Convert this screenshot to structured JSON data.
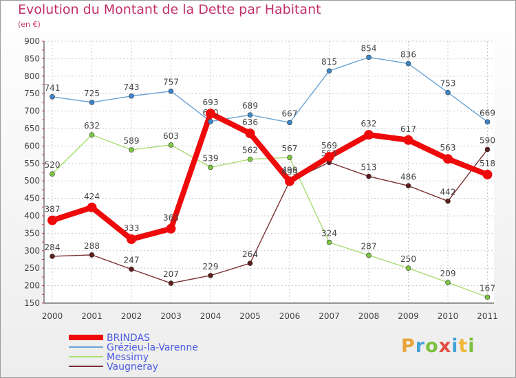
{
  "title": "Evolution du Montant de la Dette par Habitant",
  "unit_label": "(en €)",
  "logo": {
    "text": "Proxiti",
    "letter_colors": [
      "#e8a33a",
      "#43a3d8",
      "#7bbf3a",
      "#e14c3e",
      "#43a3d8",
      "#f0b73a",
      "#7bbf3a"
    ]
  },
  "chart_data": {
    "type": "line",
    "title": "Evolution du Montant de la Dette par Habitant",
    "ylabel": "(en €)",
    "xlabel": "",
    "ylim": [
      150,
      900
    ],
    "y_ticks": [
      150,
      200,
      250,
      300,
      350,
      400,
      450,
      500,
      550,
      600,
      650,
      700,
      750,
      800,
      850,
      900
    ],
    "grid": true,
    "legend_position": "bottom-left",
    "categories": [
      "2000",
      "2001",
      "2002",
      "2003",
      "2004",
      "2005",
      "2006",
      "2007",
      "2008",
      "2009",
      "2010",
      "2011"
    ],
    "series": [
      {
        "name": "Grézieu-la-Varenne",
        "color": "#6aa3d4",
        "marker_color": "#3b86c9",
        "values": [
          741,
          725,
          743,
          757,
          670,
          689,
          667,
          815,
          854,
          836,
          753,
          669
        ],
        "labels": [
          "741",
          "725",
          "743",
          "757",
          "670",
          "689",
          "667",
          "815",
          "854",
          "836",
          "753",
          "669"
        ]
      },
      {
        "name": "Messimy",
        "color": "#a8dc70",
        "marker_color": "#7dc843",
        "values": [
          520,
          632,
          589,
          603,
          539,
          562,
          567,
          324,
          287,
          250,
          209,
          167
        ],
        "labels": [
          "520",
          "632",
          "589",
          "603",
          "539",
          "562",
          "567",
          "324",
          "287",
          "250",
          "209",
          "167"
        ]
      },
      {
        "name": "Vaugneray",
        "color": "#7a3030",
        "marker_color": "#5e1e1e",
        "values": [
          284,
          288,
          247,
          207,
          229,
          264,
          499,
          553,
          513,
          486,
          442,
          590
        ],
        "labels": [
          "284",
          "288",
          "247",
          "207",
          "229",
          "264",
          "499",
          "553",
          "513",
          "486",
          "442",
          "590"
        ]
      },
      {
        "name": "BRINDAS",
        "color": "#ee0a0a",
        "marker_color": "#ee0a0a",
        "values": [
          387,
          424,
          333,
          363,
          693,
          636,
          499,
          569,
          632,
          617,
          563,
          518
        ],
        "labels": [
          "387",
          "424",
          "333",
          "363",
          "693",
          "636",
          "499",
          "569",
          "632",
          "617",
          "563",
          "518"
        ]
      }
    ],
    "legend": [
      {
        "name": "BRINDAS",
        "color": "#ee0a0a",
        "text_color": "#4a5ae0"
      },
      {
        "name": "Grézieu-la-Varenne",
        "color": "#6aa3d4",
        "text_color": "#4a5ae0"
      },
      {
        "name": "Messimy",
        "color": "#a8dc70",
        "text_color": "#4a5ae0"
      },
      {
        "name": "Vaugneray",
        "color": "#7a3030",
        "text_color": "#4a5ae0"
      }
    ]
  }
}
